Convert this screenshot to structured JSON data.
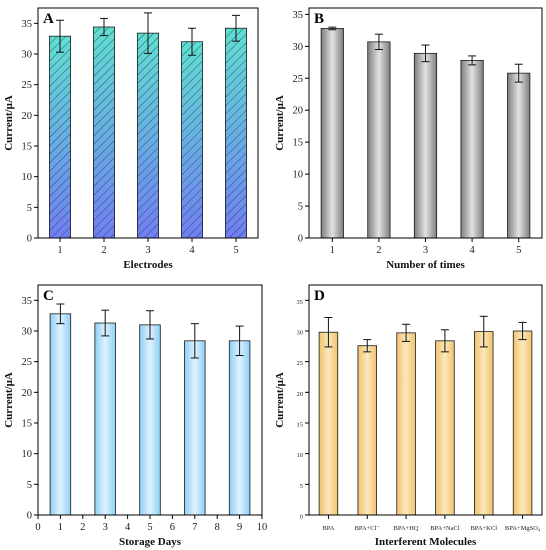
{
  "chart_data": [
    {
      "type": "bar",
      "panel": "A",
      "categories": [
        "1",
        "2",
        "3",
        "4",
        "5"
      ],
      "values": [
        32.9,
        34.4,
        33.4,
        32.0,
        34.2
      ],
      "errors": [
        2.6,
        1.4,
        3.3,
        2.2,
        2.1
      ],
      "xlabel": "Electrodes",
      "ylabel": "Current/μA",
      "ylim": [
        0,
        37.5
      ],
      "yticks": [
        0,
        5,
        10,
        15,
        20,
        25,
        30,
        35
      ],
      "bar_color": "#5fe0cf",
      "bar_color_2": "#6f7ff0",
      "hatched": true
    },
    {
      "type": "bar",
      "panel": "B",
      "categories": [
        "1",
        "2",
        "3",
        "4",
        "5"
      ],
      "values": [
        32.8,
        30.7,
        28.9,
        27.8,
        25.8
      ],
      "errors": [
        0.2,
        1.2,
        1.3,
        0.7,
        1.4
      ],
      "xlabel": "Number of times",
      "ylabel": "Current/μA",
      "ylim": [
        0,
        36
      ],
      "yticks": [
        0,
        5,
        10,
        15,
        20,
        25,
        30,
        35
      ],
      "bar_color": "#9a9a9a",
      "bar_color_2": "#d8d8d8"
    },
    {
      "type": "bar",
      "panel": "C",
      "x": [
        1,
        3,
        5,
        7,
        9
      ],
      "values": [
        32.8,
        31.3,
        31.0,
        28.4,
        28.4
      ],
      "errors": [
        1.6,
        2.1,
        2.3,
        2.8,
        2.4
      ],
      "xlabel": "Storage Days",
      "ylabel": "Current/μA",
      "xlim": [
        0,
        10
      ],
      "xticks": [
        0,
        1,
        2,
        3,
        4,
        5,
        6,
        7,
        8,
        9,
        10
      ],
      "ylim": [
        0,
        37.5
      ],
      "yticks": [
        0,
        5,
        10,
        15,
        20,
        25,
        30,
        35
      ],
      "bar_color": "#bfe4fb",
      "bar_color_2": "#7fc4f2"
    },
    {
      "type": "bar",
      "panel": "D",
      "categories": [
        "BPA",
        "BPA+Cl⁻",
        "BPA+HQ",
        "BPA+NaCl",
        "BPA+KCl",
        "BPA+MgSO₄"
      ],
      "values": [
        29.8,
        27.6,
        29.7,
        28.4,
        29.9,
        30.0
      ],
      "errors": [
        2.4,
        1.0,
        1.4,
        1.8,
        2.5,
        1.4
      ],
      "xlabel": "Interferent Molecules",
      "ylabel": "Current/μA",
      "ylim": [
        0,
        37.5
      ],
      "yticks": [
        0,
        5,
        10,
        15,
        20,
        25,
        30,
        35
      ],
      "bar_color": "#f8dca0",
      "bar_color_2": "#f0c36c"
    }
  ]
}
